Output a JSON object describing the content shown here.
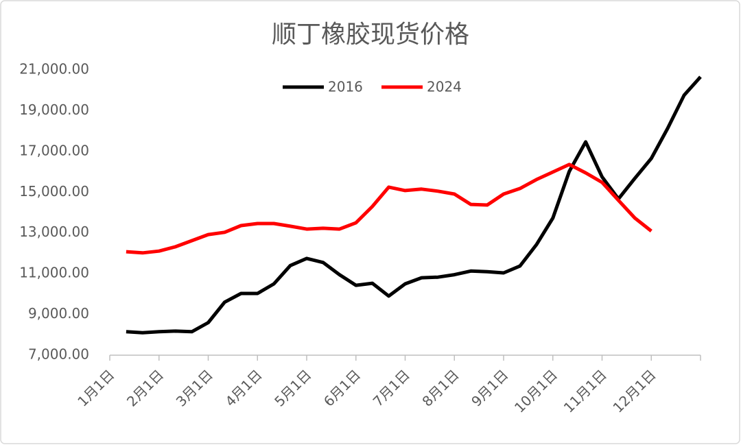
{
  "chart_data": {
    "type": "line",
    "title": "顺丁橡胶现货价格",
    "categories": [
      "1月1日",
      null,
      null,
      "2月1日",
      null,
      null,
      "3月1日",
      null,
      null,
      "4月1日",
      null,
      null,
      "5月1日",
      null,
      null,
      "6月1日",
      null,
      null,
      "7月1日",
      null,
      null,
      "8月1日",
      null,
      null,
      "9月1日",
      null,
      null,
      "10月1日",
      null,
      null,
      "11月1日",
      null,
      null,
      "12月1日",
      null,
      null,
      null
    ],
    "series": [
      {
        "name": "2016",
        "color": "#000000",
        "values": [
          null,
          8150,
          8100,
          8150,
          8180,
          8150,
          8600,
          9600,
          10030,
          10030,
          10500,
          11400,
          11750,
          11550,
          10950,
          10430,
          10530,
          9900,
          10500,
          10800,
          10830,
          10950,
          11130,
          11100,
          11040,
          11380,
          12420,
          13730,
          16020,
          17470,
          15750,
          14670,
          15680,
          16660,
          18140,
          19760,
          20660
        ]
      },
      {
        "name": "2024",
        "color": "#ff0000",
        "values": [
          null,
          12080,
          12020,
          12110,
          12320,
          12620,
          12920,
          13030,
          13360,
          13460,
          13460,
          13330,
          13190,
          13230,
          13190,
          13500,
          14300,
          15250,
          15080,
          15150,
          15050,
          14910,
          14400,
          14370,
          14910,
          15180,
          15620,
          15990,
          16360,
          15950,
          15480,
          14600,
          13730,
          13090,
          null,
          null,
          null
        ]
      }
    ],
    "ylim": [
      7000,
      21000
    ],
    "yticks": [
      {
        "value": 7000,
        "label": "7,000.00"
      },
      {
        "value": 9000,
        "label": "9,000.00"
      },
      {
        "value": 11000,
        "label": "11,000.00"
      },
      {
        "value": 13000,
        "label": "13,000.00"
      },
      {
        "value": 15000,
        "label": "15,000.00"
      },
      {
        "value": 17000,
        "label": "17,000.00"
      },
      {
        "value": 19000,
        "label": "19,000.00"
      },
      {
        "value": 21000,
        "label": "21,000.00"
      }
    ],
    "grid": false,
    "legend": "top"
  }
}
